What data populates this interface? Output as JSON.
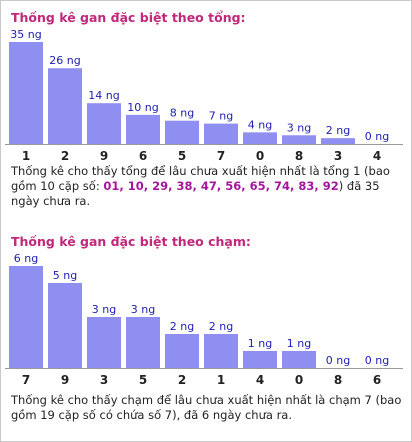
{
  "chart_data": [
    {
      "type": "bar",
      "title": "Thống kê gan đặc biệt theo tổng:",
      "categories": [
        "1",
        "2",
        "9",
        "6",
        "5",
        "7",
        "0",
        "8",
        "3",
        "4"
      ],
      "values": [
        35,
        26,
        14,
        10,
        8,
        7,
        4,
        3,
        2,
        0
      ],
      "value_suffix": " ng",
      "ylim": [
        0,
        35
      ],
      "grid": false,
      "bar_color": "#8f8ff2",
      "description": {
        "text_before": "Thống kê cho thấy tổng để lâu chưa xuất hiện nhất là tổng 1 (bao gồm 10 cặp số: ",
        "highlight": "01, 10, 29, 38, 47, 56, 65, 74, 83, 92",
        "text_after": ") đã 35 ngày chưa ra."
      }
    },
    {
      "type": "bar",
      "title": "Thống kê gan đặc biệt theo chạm:",
      "categories": [
        "7",
        "9",
        "3",
        "5",
        "2",
        "1",
        "4",
        "0",
        "8",
        "6"
      ],
      "values": [
        6,
        5,
        3,
        3,
        2,
        2,
        1,
        1,
        0,
        0
      ],
      "value_suffix": " ng",
      "ylim": [
        0,
        6
      ],
      "grid": false,
      "bar_color": "#8f8ff2",
      "description": {
        "text": "Thống kê cho thấy chạm để lâu chưa xuất hiện nhất là chạm 7 (bao gồm 19 cặp số có chứa số 7), đã 6 ngày chưa ra."
      }
    }
  ],
  "colors": {
    "title": "#c0287a",
    "highlight": "#a4179c",
    "value_label": "#1d1db0",
    "bar": "#8f8ff2"
  }
}
